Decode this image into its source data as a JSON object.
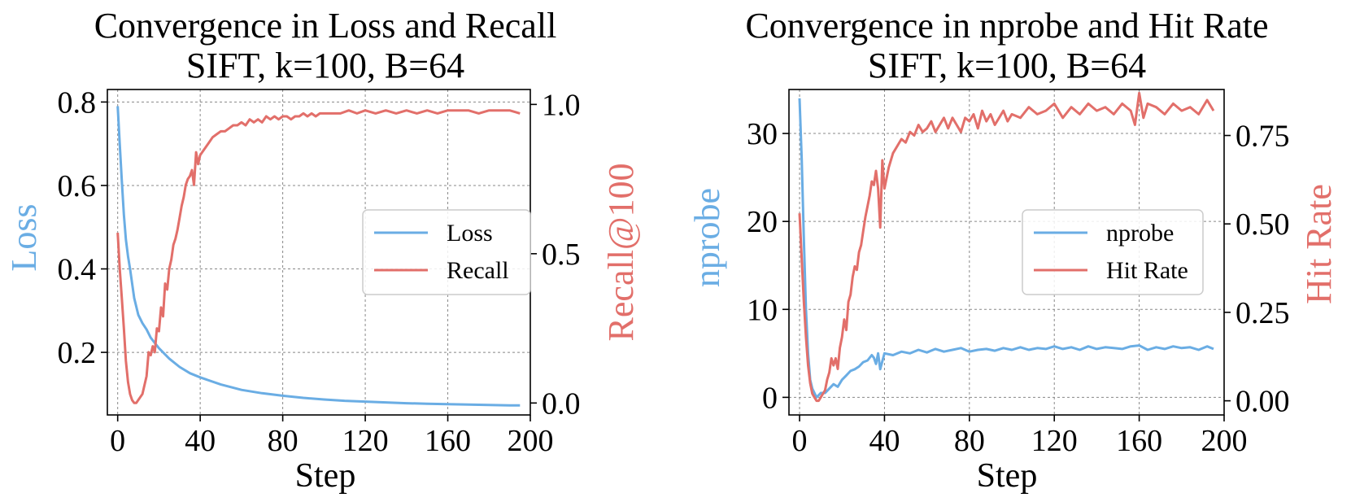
{
  "chart_data": [
    {
      "type": "line",
      "title_line1": "Convergence in Loss and Recall",
      "title_line2": "SIFT, k=100, B=64",
      "xlabel": "Step",
      "ylabel_left": "Loss",
      "ylabel_right": "Recall@100",
      "xlim": [
        -5,
        200
      ],
      "ylim_left": [
        0.05,
        0.83
      ],
      "ylim_right": [
        -0.04,
        1.05
      ],
      "x_ticks": [
        0,
        40,
        80,
        120,
        160,
        200
      ],
      "y_ticks_left": [
        0.2,
        0.4,
        0.6,
        0.8
      ],
      "y_ticks_left_labels": [
        "0.2",
        "0.4",
        "0.6",
        "0.8"
      ],
      "y_ticks_right": [
        0.0,
        0.5,
        1.0
      ],
      "y_ticks_right_labels": [
        "0.0",
        "0.5",
        "1.0"
      ],
      "grid": true,
      "legend_position": "center-right",
      "series": [
        {
          "name": "Loss",
          "axis": "left",
          "color": "#6aade4",
          "x": [
            0,
            1,
            2,
            3,
            4,
            5,
            6,
            8,
            10,
            12,
            14,
            16,
            20,
            25,
            30,
            35,
            40,
            50,
            60,
            70,
            80,
            90,
            100,
            110,
            120,
            130,
            140,
            150,
            160,
            170,
            180,
            190,
            195
          ],
          "y": [
            0.79,
            0.7,
            0.61,
            0.53,
            0.47,
            0.43,
            0.4,
            0.33,
            0.29,
            0.27,
            0.255,
            0.235,
            0.21,
            0.185,
            0.165,
            0.15,
            0.14,
            0.123,
            0.11,
            0.102,
            0.096,
            0.091,
            0.087,
            0.084,
            0.082,
            0.08,
            0.078,
            0.077,
            0.076,
            0.075,
            0.074,
            0.073,
            0.073
          ]
        },
        {
          "name": "Recall",
          "axis": "right",
          "color": "#e26f6a",
          "x": [
            0,
            1,
            2,
            3,
            4,
            5,
            6,
            7,
            8,
            9,
            10,
            12,
            14,
            15,
            16,
            17,
            18,
            19,
            20,
            21,
            22,
            23,
            24,
            25,
            26,
            27,
            28,
            29,
            30,
            31,
            32,
            33,
            34,
            35,
            36,
            37,
            38,
            39,
            40,
            42,
            44,
            46,
            48,
            50,
            52,
            54,
            56,
            58,
            60,
            62,
            64,
            66,
            68,
            70,
            72,
            74,
            76,
            78,
            80,
            82,
            84,
            86,
            88,
            90,
            92,
            94,
            96,
            98,
            100,
            104,
            108,
            112,
            116,
            120,
            125,
            130,
            135,
            140,
            145,
            150,
            155,
            160,
            165,
            170,
            175,
            180,
            185,
            190,
            195
          ],
          "y": [
            0.57,
            0.45,
            0.35,
            0.25,
            0.14,
            0.07,
            0.03,
            0.01,
            0.0,
            0.0,
            0.01,
            0.03,
            0.09,
            0.17,
            0.16,
            0.19,
            0.17,
            0.25,
            0.24,
            0.32,
            0.29,
            0.4,
            0.38,
            0.45,
            0.48,
            0.53,
            0.55,
            0.58,
            0.62,
            0.66,
            0.69,
            0.73,
            0.75,
            0.76,
            0.78,
            0.73,
            0.84,
            0.8,
            0.83,
            0.85,
            0.87,
            0.89,
            0.9,
            0.91,
            0.91,
            0.92,
            0.93,
            0.93,
            0.94,
            0.93,
            0.95,
            0.94,
            0.95,
            0.94,
            0.96,
            0.95,
            0.96,
            0.95,
            0.96,
            0.96,
            0.95,
            0.96,
            0.96,
            0.97,
            0.96,
            0.97,
            0.96,
            0.97,
            0.97,
            0.97,
            0.97,
            0.98,
            0.97,
            0.98,
            0.97,
            0.98,
            0.97,
            0.98,
            0.97,
            0.98,
            0.97,
            0.98,
            0.98,
            0.98,
            0.97,
            0.98,
            0.98,
            0.98,
            0.97
          ]
        }
      ]
    },
    {
      "type": "line",
      "title_line1": "Convergence in nprobe and Hit Rate",
      "title_line2": "SIFT, k=100, B=64",
      "xlabel": "Step",
      "ylabel_left": "nprobe",
      "ylabel_right": "Hit Rate",
      "xlim": [
        -5,
        200
      ],
      "ylim_left": [
        -2,
        35
      ],
      "ylim_right": [
        -0.04,
        0.88
      ],
      "x_ticks": [
        0,
        40,
        80,
        120,
        160,
        200
      ],
      "y_ticks_left": [
        0,
        10,
        20,
        30
      ],
      "y_ticks_left_labels": [
        "0",
        "10",
        "20",
        "30"
      ],
      "y_ticks_right": [
        0.0,
        0.25,
        0.5,
        0.75
      ],
      "y_ticks_right_labels": [
        "0.00",
        "0.25",
        "0.50",
        "0.75"
      ],
      "grid": true,
      "legend_position": "center-right",
      "series": [
        {
          "name": "nprobe",
          "axis": "left",
          "color": "#6aade4",
          "x": [
            0,
            1,
            2,
            3,
            4,
            5,
            6,
            7,
            8,
            10,
            12,
            14,
            16,
            18,
            20,
            22,
            24,
            26,
            28,
            30,
            32,
            34,
            35,
            36,
            37,
            38,
            40,
            44,
            48,
            52,
            56,
            60,
            64,
            68,
            72,
            76,
            80,
            84,
            88,
            92,
            96,
            100,
            104,
            108,
            112,
            116,
            120,
            124,
            128,
            132,
            136,
            140,
            144,
            148,
            152,
            156,
            160,
            164,
            168,
            172,
            176,
            180,
            184,
            188,
            192,
            195
          ],
          "y": [
            34,
            27,
            18,
            10,
            5,
            2,
            1,
            0.5,
            0,
            0.5,
            0.5,
            1,
            1.5,
            1.2,
            2,
            2.5,
            3,
            3.2,
            3.5,
            4,
            4.2,
            4.8,
            4.5,
            3.8,
            5,
            3.2,
            5,
            4.8,
            5.2,
            5,
            5.4,
            5.1,
            5.5,
            5.2,
            5.4,
            5.6,
            5.2,
            5.4,
            5.5,
            5.3,
            5.6,
            5.4,
            5.7,
            5.4,
            5.6,
            5.5,
            5.8,
            5.5,
            5.7,
            5.4,
            5.8,
            5.5,
            5.7,
            5.6,
            5.5,
            5.8,
            5.9,
            5.4,
            5.7,
            5.5,
            5.8,
            5.6,
            5.7,
            5.4,
            5.8,
            5.5
          ]
        },
        {
          "name": "Hit Rate",
          "axis": "right",
          "color": "#e26f6a",
          "x": [
            0,
            1,
            2,
            3,
            4,
            5,
            6,
            7,
            8,
            9,
            10,
            12,
            13,
            14,
            15,
            16,
            17,
            18,
            19,
            20,
            21,
            22,
            23,
            24,
            25,
            26,
            27,
            28,
            29,
            30,
            31,
            32,
            33,
            34,
            35,
            36,
            37,
            38,
            39,
            40,
            42,
            44,
            46,
            48,
            50,
            52,
            54,
            56,
            58,
            60,
            62,
            64,
            66,
            68,
            70,
            72,
            74,
            76,
            78,
            80,
            82,
            84,
            86,
            88,
            90,
            92,
            94,
            96,
            98,
            100,
            104,
            108,
            112,
            116,
            120,
            124,
            128,
            132,
            136,
            140,
            144,
            148,
            152,
            156,
            158,
            160,
            162,
            164,
            168,
            172,
            176,
            180,
            184,
            188,
            192,
            195
          ],
          "y": [
            0.53,
            0.4,
            0.28,
            0.18,
            0.1,
            0.05,
            0.02,
            0.01,
            0.0,
            0.0,
            0.01,
            0.03,
            0.06,
            0.08,
            0.12,
            0.1,
            0.12,
            0.09,
            0.15,
            0.18,
            0.23,
            0.2,
            0.28,
            0.3,
            0.35,
            0.38,
            0.37,
            0.42,
            0.44,
            0.48,
            0.52,
            0.55,
            0.58,
            0.62,
            0.61,
            0.65,
            0.6,
            0.49,
            0.68,
            0.6,
            0.66,
            0.7,
            0.72,
            0.74,
            0.73,
            0.76,
            0.75,
            0.78,
            0.76,
            0.77,
            0.79,
            0.76,
            0.78,
            0.8,
            0.77,
            0.8,
            0.78,
            0.76,
            0.8,
            0.79,
            0.81,
            0.77,
            0.82,
            0.79,
            0.81,
            0.78,
            0.8,
            0.82,
            0.79,
            0.81,
            0.8,
            0.83,
            0.81,
            0.82,
            0.84,
            0.8,
            0.83,
            0.81,
            0.84,
            0.82,
            0.83,
            0.81,
            0.84,
            0.82,
            0.78,
            0.87,
            0.8,
            0.84,
            0.83,
            0.81,
            0.84,
            0.82,
            0.83,
            0.81,
            0.85,
            0.82
          ]
        }
      ]
    }
  ]
}
